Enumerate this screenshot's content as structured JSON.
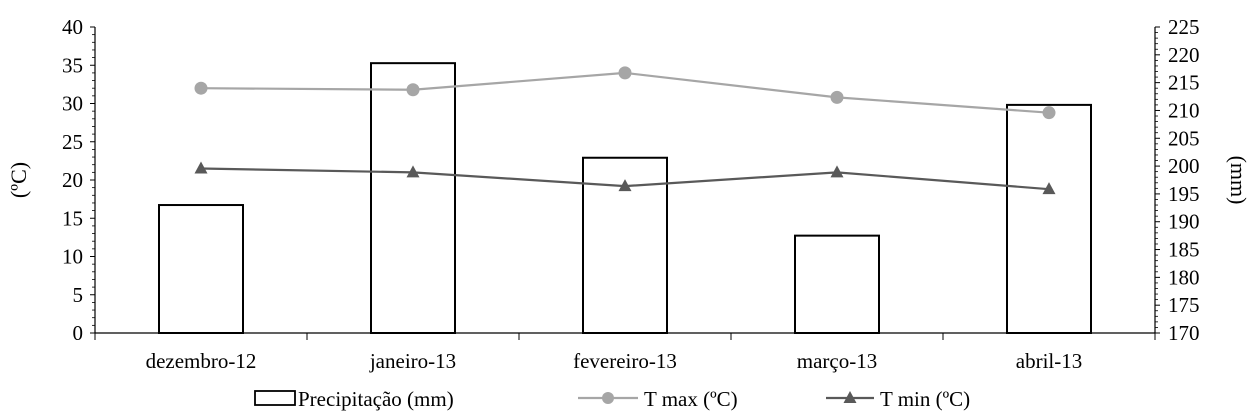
{
  "chart_data": {
    "type": "bar",
    "categories": [
      "dezembro-12",
      "janeiro-13",
      "fevereiro-13",
      "março-13",
      "abril-13"
    ],
    "series": [
      {
        "name": "Precipitação (mm)",
        "type": "bar",
        "axis": "right",
        "values": [
          193,
          218.5,
          201.5,
          187.5,
          211
        ]
      },
      {
        "name": "T max (ºC)",
        "type": "line",
        "axis": "left",
        "values": [
          32,
          31.8,
          34,
          30.8,
          28.8
        ]
      },
      {
        "name": "T min (ºC)",
        "type": "line",
        "axis": "left",
        "values": [
          21.5,
          21,
          19.2,
          21,
          18.8
        ]
      }
    ],
    "ylabel": "(ºC)",
    "y2label": "(mm)",
    "ylim": [
      0,
      40
    ],
    "y2lim": [
      170,
      225
    ],
    "yticks": [
      "0",
      "5",
      "10",
      "15",
      "20",
      "25",
      "30",
      "35",
      "40"
    ],
    "y2ticks": [
      "170",
      "175",
      "180",
      "185",
      "190",
      "195",
      "200",
      "205",
      "210",
      "215",
      "220",
      "225"
    ],
    "legend_position": "bottom",
    "grid": false,
    "colors": {
      "bar_fill": "#ffffff",
      "bar_stroke": "#000000",
      "tmax": "#a6a6a6",
      "tmin": "#595959",
      "axis": "#000000"
    }
  }
}
